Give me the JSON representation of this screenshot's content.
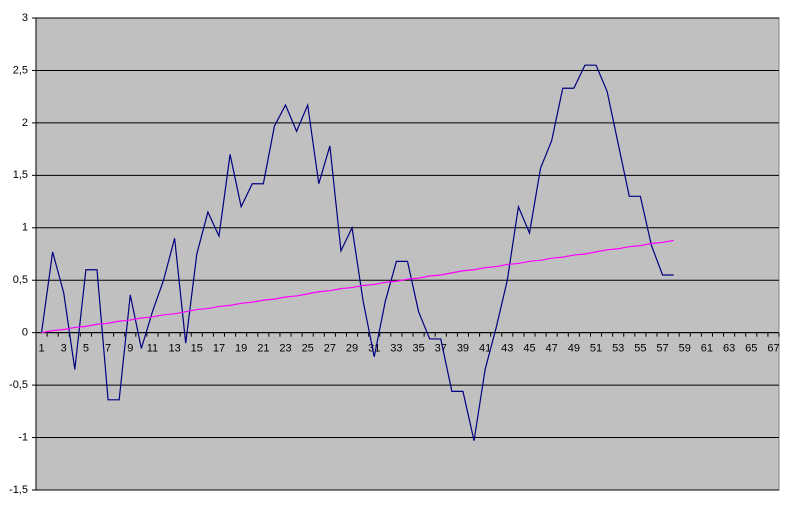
{
  "chart_data": {
    "type": "line",
    "categories": [
      "1",
      null,
      "3",
      null,
      "5",
      null,
      "7",
      null,
      "9",
      null,
      "11",
      null,
      "13",
      null,
      "15",
      null,
      "17",
      null,
      "19",
      null,
      "21",
      null,
      "23",
      null,
      "25",
      null,
      "27",
      null,
      "29",
      null,
      "31",
      null,
      "33",
      null,
      "35",
      null,
      "37",
      null,
      "39",
      null,
      "41",
      null,
      "43",
      null,
      "45",
      null,
      "47",
      null,
      "49",
      null,
      "51",
      null,
      "53",
      null,
      "55",
      null,
      "57",
      null,
      "59",
      null,
      "61",
      null,
      "63",
      null,
      "65",
      null,
      "67"
    ],
    "series": [
      {
        "color": "#000080",
        "values": [
          0,
          0.77,
          0.38,
          -0.35,
          0.6,
          0.6,
          -0.64,
          -0.64,
          0.36,
          -0.15,
          0.2,
          0.5,
          0.9,
          -0.1,
          0.75,
          1.15,
          0.92,
          1.7,
          1.2,
          1.42,
          1.42,
          1.97,
          2.17,
          1.92,
          2.17,
          1.42,
          1.78,
          0.78,
          1.0,
          0.3,
          -0.23,
          0.3,
          0.68,
          0.68,
          0.2,
          -0.06,
          -0.06,
          -0.56,
          -0.56,
          -1.03,
          -0.35,
          0.05,
          0.5,
          1.2,
          0.95,
          1.57,
          1.83,
          2.33,
          2.33,
          2.55,
          2.55,
          2.3,
          1.8,
          1.3,
          1.3,
          0.83,
          0.55,
          0.55,
          null,
          null,
          null,
          null,
          null,
          null,
          null,
          null,
          null
        ]
      },
      {
        "color": "#ff00ff",
        "values": [
          0,
          0.02,
          0.03,
          0.05,
          0.06,
          0.08,
          0.09,
          0.11,
          0.12,
          0.14,
          0.15,
          0.17,
          0.18,
          0.2,
          0.22,
          0.23,
          0.25,
          0.26,
          0.28,
          0.29,
          0.31,
          0.32,
          0.34,
          0.35,
          0.37,
          0.39,
          0.4,
          0.42,
          0.43,
          0.45,
          0.46,
          0.48,
          0.49,
          0.51,
          0.52,
          0.54,
          0.55,
          0.57,
          0.59,
          0.6,
          0.62,
          0.63,
          0.65,
          0.66,
          0.68,
          0.69,
          0.71,
          0.72,
          0.74,
          0.75,
          0.77,
          0.79,
          0.8,
          0.82,
          0.83,
          0.85,
          0.86,
          0.88,
          null,
          null,
          null,
          null,
          null,
          null,
          null,
          null,
          null
        ]
      }
    ],
    "ylim": [
      -1.5,
      3
    ],
    "yticks": [
      {
        "value": -1.5,
        "label": "-1,5"
      },
      -1,
      {
        "value": -0.5,
        "label": "-0,5"
      },
      0,
      {
        "value": 0.5,
        "label": "0,5"
      },
      1,
      {
        "value": 1.5,
        "label": "1,5"
      },
      2,
      {
        "value": 2.5,
        "label": "2,5"
      },
      3
    ],
    "grid": true,
    "background": "#c0c0c0"
  }
}
